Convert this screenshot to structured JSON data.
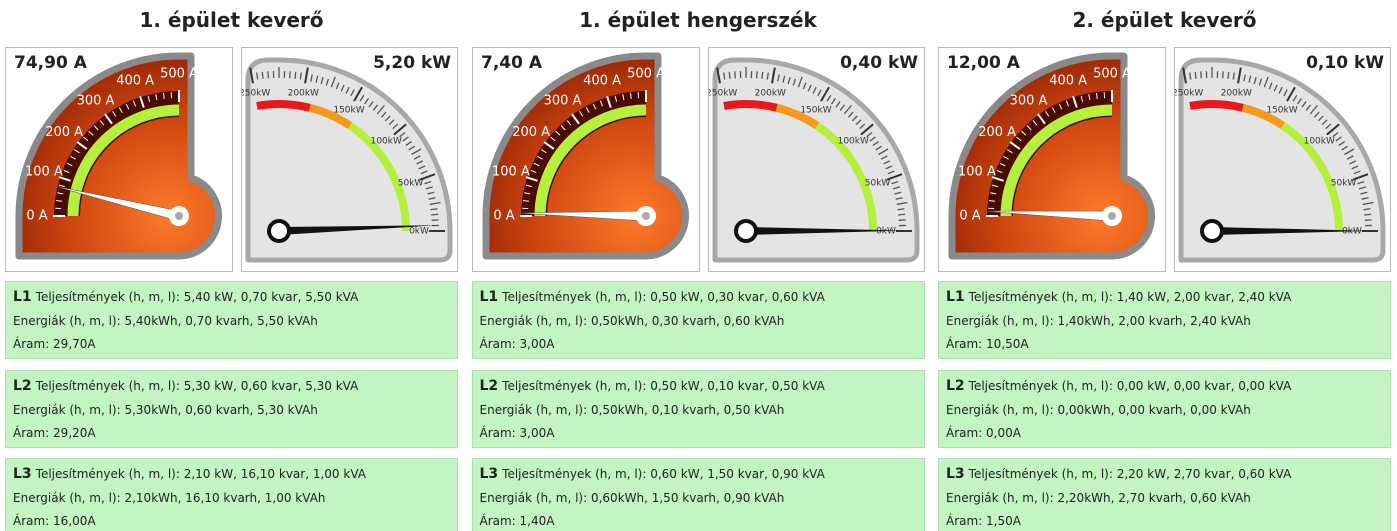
{
  "current_scale": {
    "lim": [
      0,
      500
    ],
    "ticks": [
      {
        "value": 0,
        "label": "0 A"
      },
      {
        "value": 100,
        "label": "100 A"
      },
      {
        "value": 200,
        "label": "200 A"
      },
      {
        "value": 300,
        "label": "300 A"
      },
      {
        "value": 400,
        "label": "400 A"
      },
      {
        "value": 500,
        "label": "500 A"
      }
    ],
    "zones": [
      {
        "from": 0,
        "to": 500,
        "color": "#b4f03c"
      }
    ]
  },
  "power_scale": {
    "lim": [
      0,
      250
    ],
    "ticks": [
      {
        "value": 0,
        "label": "0kW"
      },
      {
        "value": 50,
        "label": "50kW"
      },
      {
        "value": 100,
        "label": "100kW"
      },
      {
        "value": 150,
        "label": "150kW"
      },
      {
        "value": 200,
        "label": "200kW"
      },
      {
        "value": 250,
        "label": "250kW"
      }
    ],
    "zones": [
      {
        "from": 0,
        "to": 140,
        "color": "#b4f03c"
      },
      {
        "from": 140,
        "to": 190,
        "color": "#f59a1e"
      },
      {
        "from": 190,
        "to": 250,
        "color": "#e8191e"
      }
    ]
  },
  "panels": [
    {
      "title": "1. épület keverő",
      "current_gauge": {
        "value": 74.9,
        "value_label": "74,90 A"
      },
      "power_gauge": {
        "value": 5.2,
        "value_label": "5,20 kW"
      },
      "phases": [
        {
          "name": "L1",
          "power": "Teljesítmények (h, m, l): 5,40 kW, 0,70 kvar, 5,50 kVA",
          "energy": "Energiák (h, m, l): 5,40kWh, 0,70 kvarh, 5,50 kVAh",
          "current": "Áram: 29,70A"
        },
        {
          "name": "L2",
          "power": "Teljesítmények (h, m, l): 5,30 kW, 0,60 kvar, 5,30 kVA",
          "energy": "Energiák (h, m, l): 5,30kWh, 0,60 kvarh, 5,30 kVAh",
          "current": "Áram: 29,20A"
        },
        {
          "name": "L3",
          "power": "Teljesítmények (h, m, l): 2,10 kW, 16,10 kvar, 1,00 kVA",
          "energy": "Energiák (h, m, l): 2,10kWh, 16,10 kvarh, 1,00 kVAh",
          "current": "Áram: 16,00A"
        }
      ]
    },
    {
      "title": "1. épület hengerszék",
      "current_gauge": {
        "value": 7.4,
        "value_label": "7,40 A"
      },
      "power_gauge": {
        "value": 0.4,
        "value_label": "0,40 kW"
      },
      "phases": [
        {
          "name": "L1",
          "power": "Teljesítmények (h, m, l): 0,50 kW, 0,30 kvar, 0,60 kVA",
          "energy": "Energiák (h, m, l): 0,50kWh, 0,30 kvarh, 0,60 kVAh",
          "current": "Áram: 3,00A"
        },
        {
          "name": "L2",
          "power": "Teljesítmények (h, m, l): 0,50 kW, 0,10 kvar, 0,50 kVA",
          "energy": "Energiák (h, m, l): 0,50kWh, 0,10 kvarh, 0,50 kVAh",
          "current": "Áram: 3,00A"
        },
        {
          "name": "L3",
          "power": "Teljesítmények (h, m, l): 0,60 kW, 1,50 kvar, 0,90 kVA",
          "energy": "Energiák (h, m, l): 0,60kWh, 1,50 kvarh, 0,90 kVAh",
          "current": "Áram: 1,40A"
        }
      ]
    },
    {
      "title": "2. épület keverő",
      "current_gauge": {
        "value": 12,
        "value_label": "12,00 A"
      },
      "power_gauge": {
        "value": 0.1,
        "value_label": "0,10 kW"
      },
      "phases": [
        {
          "name": "L1",
          "power": "Teljesítmények (h, m, l): 1,40 kW, 2,00 kvar, 2,40 kVA",
          "energy": "Energiák (h, m, l): 1,40kWh, 2,00 kvarh, 2,40 kVAh",
          "current": "Áram: 10,50A"
        },
        {
          "name": "L2",
          "power": "Teljesítmények (h, m, l): 0,00 kW, 0,00 kvar, 0,00 kVA",
          "energy": "Energiák (h, m, l): 0,00kWh, 0,00 kvarh, 0,00 kVAh",
          "current": "Áram: 0,00A"
        },
        {
          "name": "L3",
          "power": "Teljesítmények (h, m, l): 2,20 kW, 2,70 kvar, 0,60 kVA",
          "energy": "Energiák (h, m, l): 2,20kWh, 2,70 kvarh, 0,60 kVAh",
          "current": "Áram: 1,50A"
        }
      ]
    }
  ]
}
